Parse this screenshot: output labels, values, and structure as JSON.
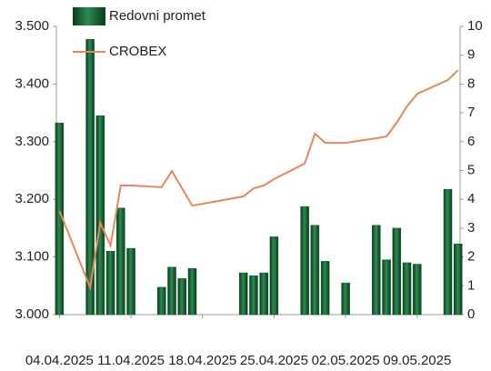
{
  "chart_data": {
    "type": "bar_line",
    "x": [
      "04.04.2025",
      "07.04.2025",
      "08.04.2025",
      "09.04.2025",
      "10.04.2025",
      "11.04.2025",
      "14.04.2025",
      "15.04.2025",
      "16.04.2025",
      "17.04.2025",
      "22.04.2025",
      "23.04.2025",
      "24.04.2025",
      "25.04.2025",
      "28.04.2025",
      "29.04.2025",
      "30.04.2025",
      "02.05.2025",
      "05.05.2025",
      "06.05.2025",
      "07.05.2025",
      "08.05.2025",
      "09.05.2025",
      "12.05.2025",
      "13.05.2025"
    ],
    "series": [
      {
        "name": "Redovni promet",
        "kind": "bar",
        "axis": "y2",
        "color": "#0b5c2c",
        "values": [
          6.65,
          9.55,
          6.9,
          2.2,
          3.7,
          2.3,
          0.95,
          1.65,
          1.25,
          1.6,
          1.45,
          1.35,
          1.45,
          2.7,
          3.75,
          3.1,
          1.85,
          1.1,
          3.1,
          1.9,
          3.0,
          1.8,
          1.75,
          4.35,
          2.45
        ]
      },
      {
        "name": "CROBEX",
        "kind": "line",
        "axis": "y",
        "color": "#e8875a",
        "values": [
          3180,
          3047,
          3159,
          3120,
          3224,
          3224,
          3221,
          3249,
          3219,
          3189,
          3205,
          3219,
          3224,
          3235,
          3262,
          3314,
          3298,
          3298,
          3306,
          3309,
          3333,
          3361,
          3383,
          3407,
          3424
        ]
      }
    ],
    "xlim": [
      "04.04.2025",
      "13.05.2025"
    ],
    "xticks": [
      "04.04.2025",
      "11.04.2025",
      "18.04.2025",
      "25.04.2025",
      "02.05.2025",
      "09.05.2025"
    ],
    "ylim": [
      3000,
      3500
    ],
    "yticks": [
      {
        "value": 3000,
        "label": "3.000"
      },
      {
        "value": 3100,
        "label": "3.100"
      },
      {
        "value": 3200,
        "label": "3.200"
      },
      {
        "value": 3300,
        "label": "3.300"
      },
      {
        "value": 3400,
        "label": "3.400"
      },
      {
        "value": 3500,
        "label": "3.500"
      }
    ],
    "y2lim": [
      0,
      10
    ],
    "y2ticks": [
      0,
      1,
      2,
      3,
      4,
      5,
      6,
      7,
      8,
      9,
      10
    ]
  }
}
